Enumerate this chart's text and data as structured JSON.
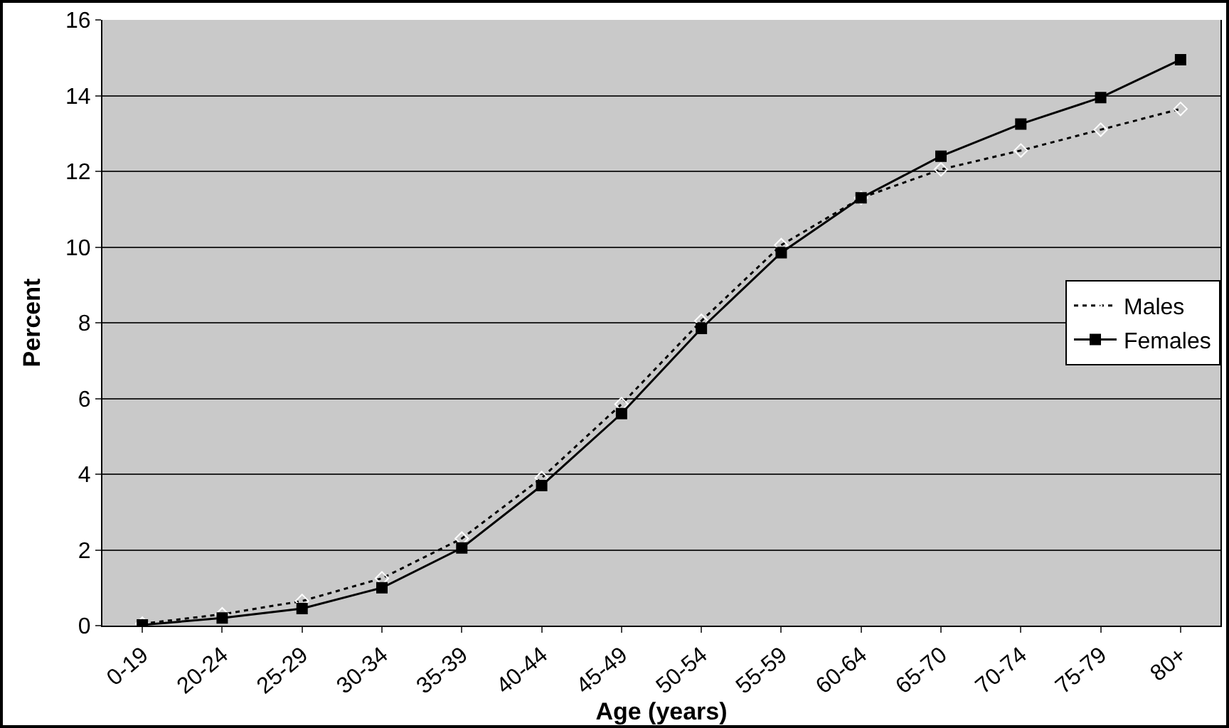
{
  "chart_data": {
    "type": "line",
    "xlabel": "Age (years)",
    "ylabel": "Percent",
    "categories": [
      "0-19",
      "20-24",
      "25-29",
      "30-34",
      "35-39",
      "40-44",
      "45-49",
      "50-54",
      "55-59",
      "60-64",
      "65-70",
      "70-74",
      "75-79",
      "80+"
    ],
    "series": [
      {
        "name": "Males",
        "color": "#000000",
        "marker": "diamond",
        "line_style": "dotted",
        "values": [
          0.05,
          0.3,
          0.65,
          1.25,
          2.3,
          3.9,
          5.85,
          8.05,
          10.05,
          11.3,
          12.05,
          12.55,
          13.1,
          13.65
        ]
      },
      {
        "name": "Females",
        "color": "#000000",
        "marker": "square",
        "line_style": "solid",
        "values": [
          0.02,
          0.2,
          0.45,
          1.0,
          2.05,
          3.7,
          5.6,
          7.85,
          9.85,
          11.3,
          12.4,
          13.25,
          13.95,
          14.95
        ]
      }
    ],
    "ylim": [
      0,
      16
    ],
    "yticks": [
      0,
      2,
      4,
      6,
      8,
      10,
      12,
      14,
      16
    ],
    "grid": "y",
    "legend": "right"
  }
}
